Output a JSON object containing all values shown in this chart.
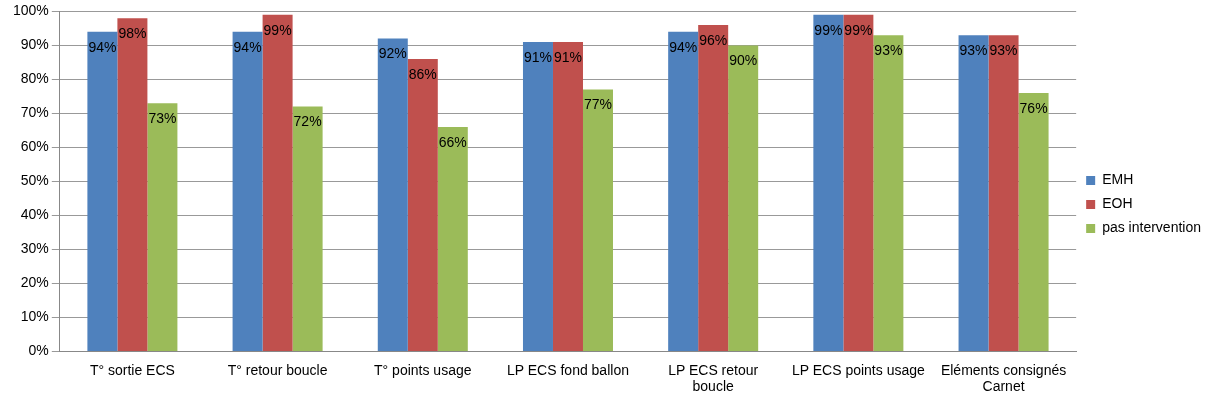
{
  "chart_data": {
    "type": "bar",
    "categories": [
      "T° sortie ECS",
      "T° retour boucle",
      "T° points usage",
      "LP ECS fond ballon",
      "LP ECS retour boucle",
      "LP ECS points usage",
      "Eléments consignés Carnet"
    ],
    "series": [
      {
        "name": "EMH",
        "color": "#4f81bd",
        "values": [
          94,
          94,
          92,
          91,
          94,
          99,
          93
        ],
        "value_labels": [
          "94%",
          "94%",
          "92%",
          "91%",
          "94%",
          "99%",
          "93%"
        ]
      },
      {
        "name": "EOH",
        "color": "#c0504d",
        "values": [
          98,
          99,
          86,
          91,
          96,
          99,
          93
        ],
        "value_labels": [
          "98%",
          "99%",
          "86%",
          "91%",
          "96%",
          "99%",
          "93%"
        ]
      },
      {
        "name": "pas intervention",
        "color": "#9bbb59",
        "values": [
          73,
          72,
          66,
          77,
          90,
          93,
          76
        ],
        "value_labels": [
          "73%",
          "72%",
          "66%",
          "77%",
          "90%",
          "93%",
          "76%"
        ]
      }
    ],
    "ylim": [
      0,
      100
    ],
    "yticks": [
      {
        "value": 0,
        "label": "0%"
      },
      {
        "value": 10,
        "label": "10%"
      },
      {
        "value": 20,
        "label": "20%"
      },
      {
        "value": 30,
        "label": "30%"
      },
      {
        "value": 40,
        "label": "40%"
      },
      {
        "value": 50,
        "label": "50%"
      },
      {
        "value": 60,
        "label": "60%"
      },
      {
        "value": 70,
        "label": "70%"
      },
      {
        "value": 80,
        "label": "80%"
      },
      {
        "value": 90,
        "label": "90%"
      },
      {
        "value": 100,
        "label": "100%"
      }
    ],
    "grid": "y",
    "legend": "right"
  }
}
